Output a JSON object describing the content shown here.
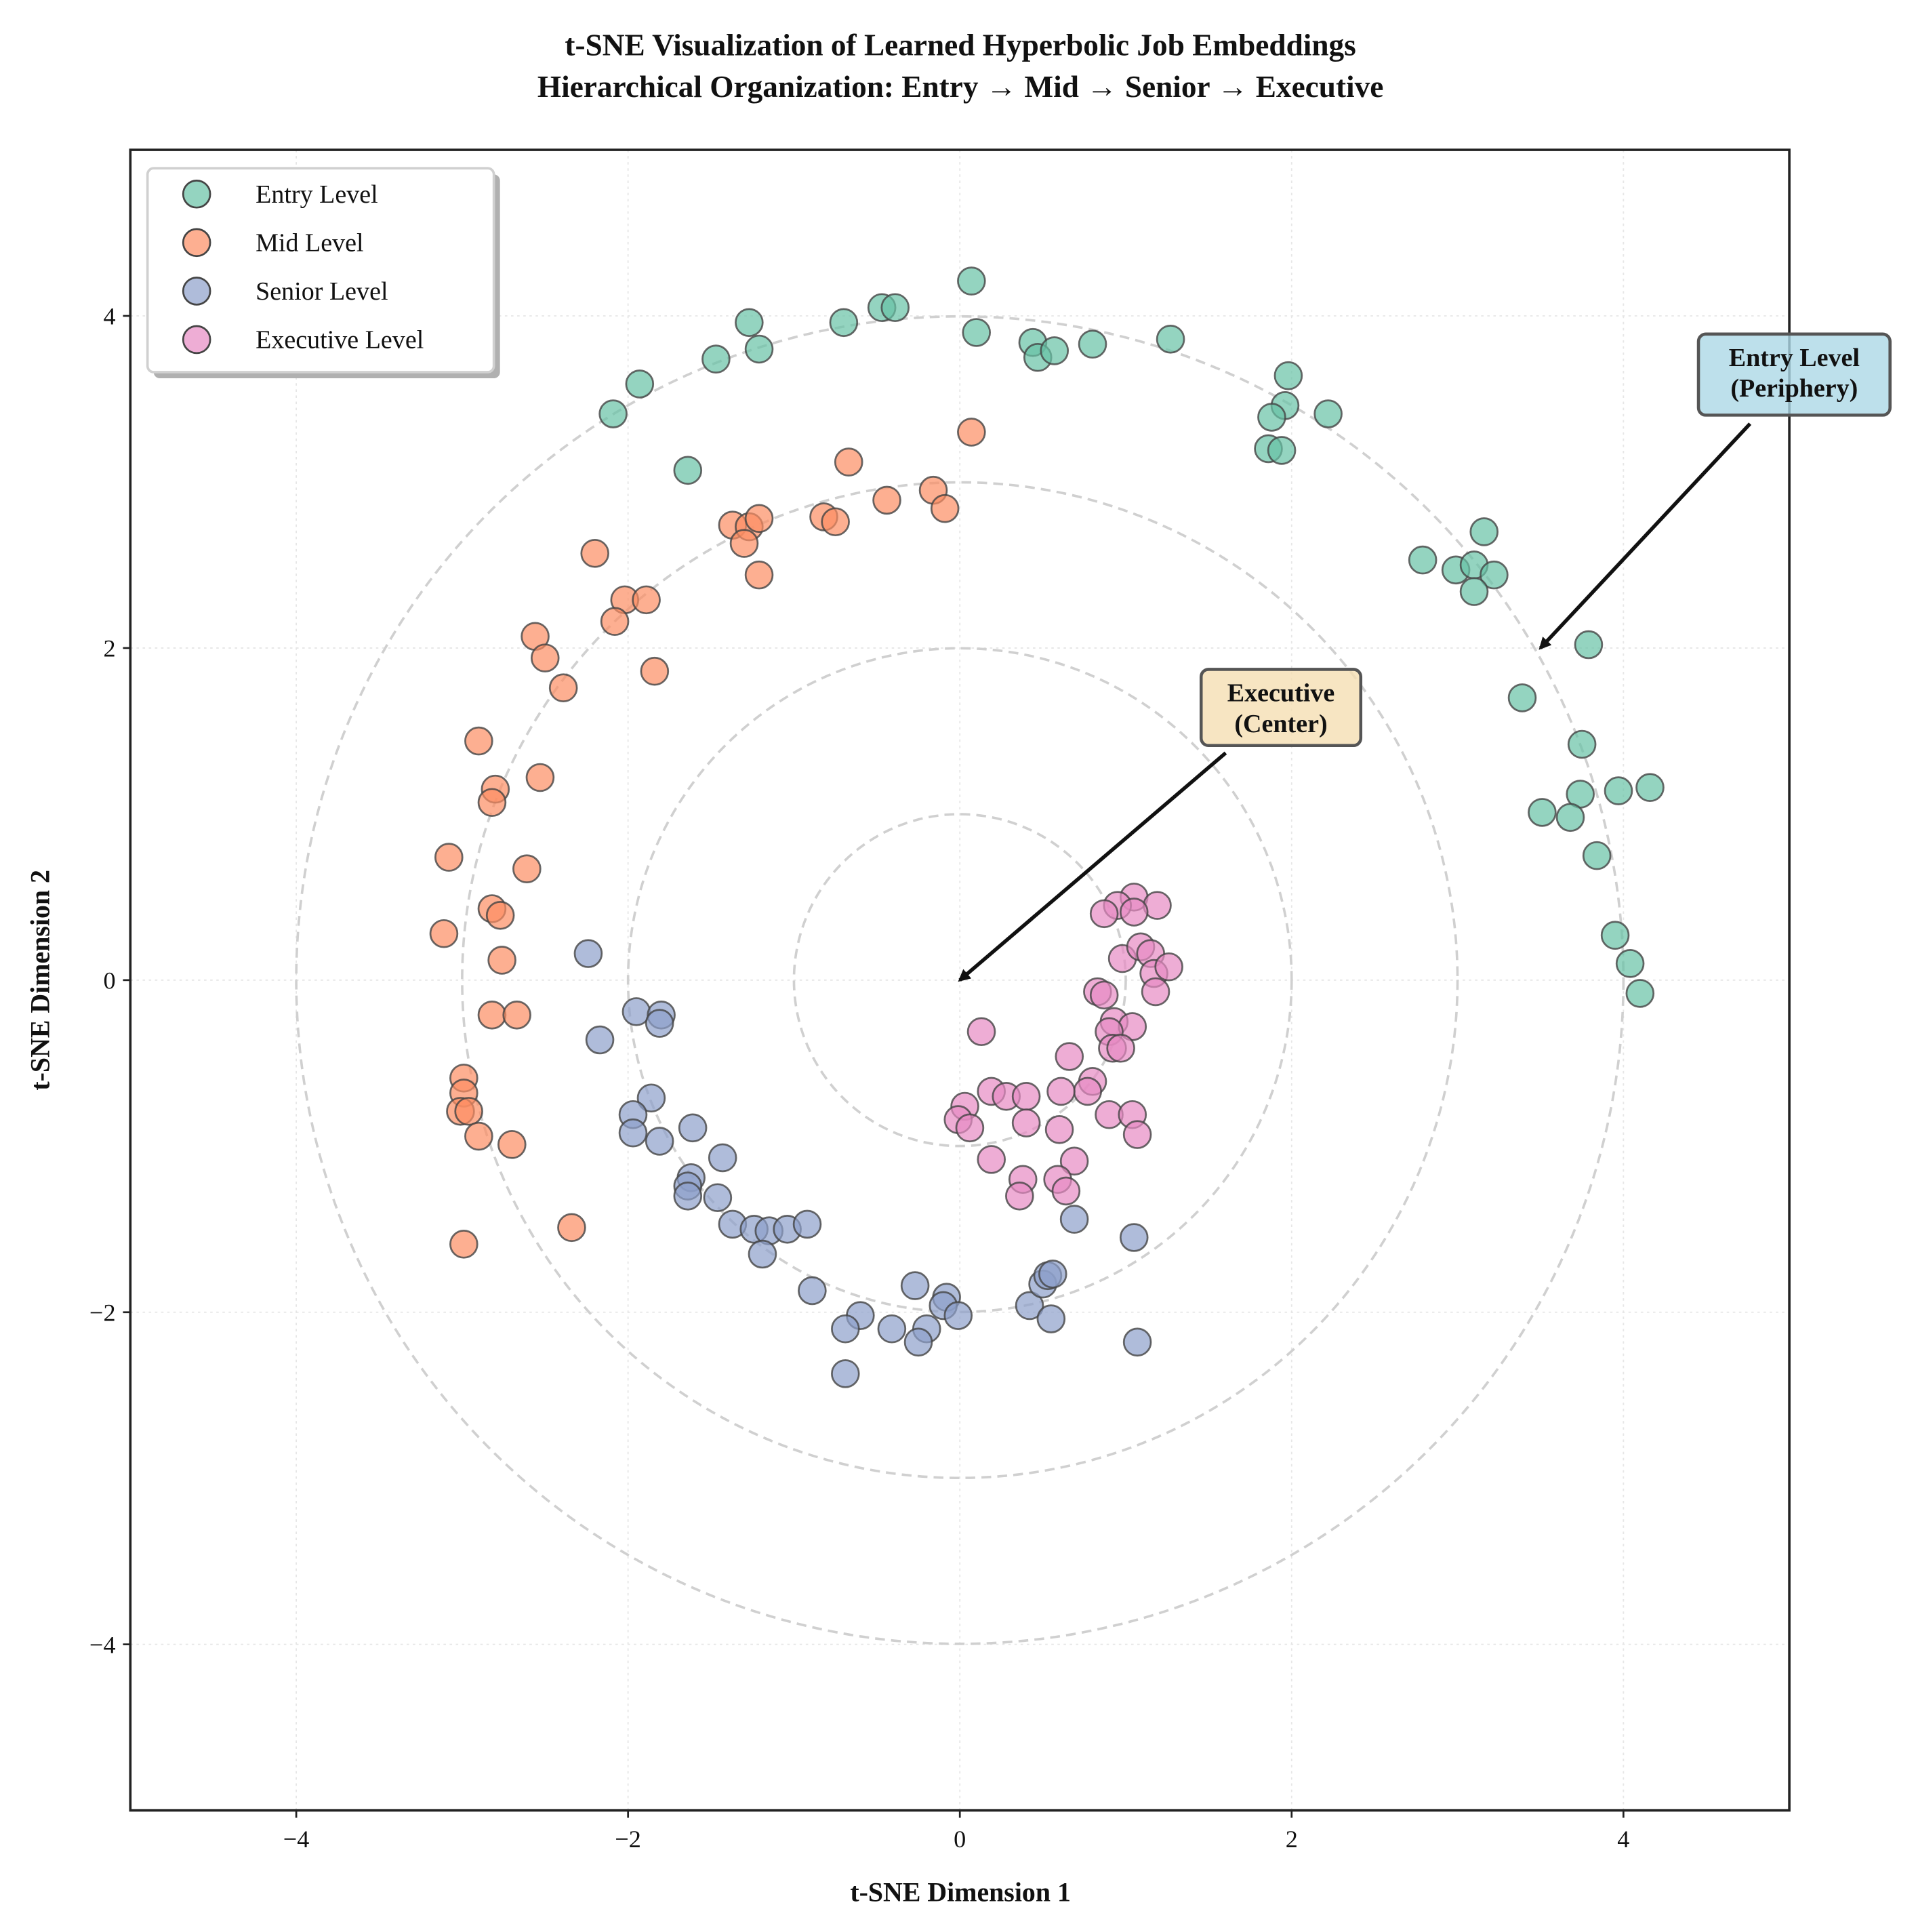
{
  "chart_data": {
    "type": "scatter",
    "title": "t-SNE Visualization of Learned Hyperbolic Job Embeddings",
    "subtitle": "Hierarchical Organization: Entry → Mid → Senior → Executive",
    "xlabel": "t-SNE Dimension 1",
    "ylabel": "t-SNE Dimension 2",
    "xlim": [
      -5,
      5
    ],
    "ylim": [
      -5,
      5
    ],
    "xticks": [
      -4,
      -2,
      0,
      2,
      4
    ],
    "yticks": [
      -4,
      -2,
      0,
      2,
      4
    ],
    "xtick_labels": [
      "−4",
      "−2",
      "0",
      "2",
      "4"
    ],
    "ytick_labels": [
      "−4",
      "−2",
      "0",
      "2",
      "4"
    ],
    "grid": true,
    "legend_placement": "top-left",
    "reference_circles": [
      1,
      2,
      3,
      4
    ],
    "series": [
      {
        "name": "Entry Level",
        "color": "#66c2a5",
        "points": [
          [
            0.07,
            4.21
          ],
          [
            0.1,
            3.9
          ],
          [
            -0.47,
            4.05
          ],
          [
            -0.39,
            4.05
          ],
          [
            -0.7,
            3.96
          ],
          [
            -1.27,
            3.96
          ],
          [
            -1.21,
            3.8
          ],
          [
            -1.47,
            3.74
          ],
          [
            -1.93,
            3.59
          ],
          [
            -2.09,
            3.41
          ],
          [
            -1.64,
            3.07
          ],
          [
            0.44,
            3.84
          ],
          [
            0.47,
            3.75
          ],
          [
            0.57,
            3.79
          ],
          [
            0.8,
            3.83
          ],
          [
            1.27,
            3.86
          ],
          [
            1.98,
            3.64
          ],
          [
            1.96,
            3.46
          ],
          [
            1.88,
            3.39
          ],
          [
            2.22,
            3.41
          ],
          [
            1.86,
            3.2
          ],
          [
            1.94,
            3.19
          ],
          [
            2.79,
            2.53
          ],
          [
            2.99,
            2.47
          ],
          [
            3.16,
            2.7
          ],
          [
            3.1,
            2.5
          ],
          [
            3.22,
            2.44
          ],
          [
            3.1,
            2.34
          ],
          [
            3.79,
            2.02
          ],
          [
            3.39,
            1.7
          ],
          [
            3.75,
            1.42
          ],
          [
            3.74,
            1.12
          ],
          [
            3.97,
            1.14
          ],
          [
            4.16,
            1.16
          ],
          [
            3.51,
            1.01
          ],
          [
            3.68,
            0.98
          ],
          [
            3.84,
            0.75
          ],
          [
            3.95,
            0.27
          ],
          [
            4.04,
            0.1
          ],
          [
            4.1,
            -0.08
          ]
        ]
      },
      {
        "name": "Mid Level",
        "color": "#fc8d62",
        "points": [
          [
            0.07,
            3.3
          ],
          [
            -0.67,
            3.12
          ],
          [
            -0.16,
            2.95
          ],
          [
            -0.09,
            2.84
          ],
          [
            -0.44,
            2.89
          ],
          [
            -0.82,
            2.79
          ],
          [
            -0.75,
            2.76
          ],
          [
            -1.37,
            2.74
          ],
          [
            -1.27,
            2.73
          ],
          [
            -1.21,
            2.78
          ],
          [
            -1.3,
            2.63
          ],
          [
            -1.21,
            2.44
          ],
          [
            -2.2,
            2.57
          ],
          [
            -2.02,
            2.29
          ],
          [
            -1.89,
            2.29
          ],
          [
            -2.08,
            2.16
          ],
          [
            -1.84,
            1.86
          ],
          [
            -2.56,
            2.07
          ],
          [
            -2.5,
            1.94
          ],
          [
            -2.39,
            1.76
          ],
          [
            -2.9,
            1.44
          ],
          [
            -2.8,
            1.15
          ],
          [
            -2.82,
            1.07
          ],
          [
            -2.53,
            1.22
          ],
          [
            -3.08,
            0.74
          ],
          [
            -2.61,
            0.67
          ],
          [
            -2.82,
            0.43
          ],
          [
            -2.77,
            0.39
          ],
          [
            -3.11,
            0.28
          ],
          [
            -2.76,
            0.12
          ],
          [
            -2.82,
            -0.21
          ],
          [
            -2.67,
            -0.21
          ],
          [
            -2.99,
            -0.59
          ],
          [
            -2.99,
            -0.68
          ],
          [
            -3.01,
            -0.79
          ],
          [
            -2.96,
            -0.79
          ],
          [
            -2.9,
            -0.94
          ],
          [
            -2.7,
            -0.99
          ],
          [
            -2.34,
            -1.49
          ],
          [
            -2.99,
            -1.59
          ]
        ]
      },
      {
        "name": "Senior Level",
        "color": "#8da0cb",
        "points": [
          [
            -2.24,
            0.16
          ],
          [
            -2.17,
            -0.36
          ],
          [
            -1.95,
            -0.19
          ],
          [
            -1.8,
            -0.21
          ],
          [
            -1.81,
            -0.26
          ],
          [
            -1.86,
            -0.71
          ],
          [
            -1.97,
            -0.81
          ],
          [
            -1.97,
            -0.92
          ],
          [
            -1.81,
            -0.97
          ],
          [
            -1.61,
            -0.89
          ],
          [
            -1.43,
            -1.07
          ],
          [
            -1.62,
            -1.19
          ],
          [
            -1.64,
            -1.24
          ],
          [
            -1.64,
            -1.3
          ],
          [
            -1.46,
            -1.31
          ],
          [
            -1.37,
            -1.47
          ],
          [
            -1.24,
            -1.5
          ],
          [
            -1.15,
            -1.51
          ],
          [
            -1.04,
            -1.5
          ],
          [
            -0.92,
            -1.47
          ],
          [
            -1.19,
            -1.65
          ],
          [
            -0.89,
            -1.87
          ],
          [
            -0.6,
            -2.02
          ],
          [
            -0.69,
            -2.1
          ],
          [
            -0.41,
            -2.1
          ],
          [
            -0.2,
            -2.1
          ],
          [
            -0.25,
            -2.18
          ],
          [
            -0.27,
            -1.84
          ],
          [
            -0.08,
            -1.91
          ],
          [
            -0.1,
            -1.96
          ],
          [
            -0.01,
            -2.02
          ],
          [
            -0.69,
            -2.37
          ],
          [
            0.42,
            -1.96
          ],
          [
            0.55,
            -2.04
          ],
          [
            0.5,
            -1.83
          ],
          [
            0.53,
            -1.78
          ],
          [
            0.56,
            -1.77
          ],
          [
            0.69,
            -1.44
          ],
          [
            1.05,
            -1.55
          ],
          [
            1.07,
            -2.18
          ]
        ]
      },
      {
        "name": "Executive Level",
        "color": "#e78ac3",
        "points": [
          [
            1.05,
            0.5
          ],
          [
            0.95,
            0.45
          ],
          [
            1.19,
            0.45
          ],
          [
            1.05,
            0.41
          ],
          [
            0.87,
            0.4
          ],
          [
            0.98,
            0.13
          ],
          [
            1.09,
            0.2
          ],
          [
            1.15,
            0.16
          ],
          [
            1.17,
            0.04
          ],
          [
            1.26,
            0.08
          ],
          [
            1.18,
            -0.07
          ],
          [
            0.83,
            -0.07
          ],
          [
            0.87,
            -0.09
          ],
          [
            0.93,
            -0.25
          ],
          [
            1.04,
            -0.28
          ],
          [
            0.9,
            -0.31
          ],
          [
            0.92,
            -0.41
          ],
          [
            0.97,
            -0.41
          ],
          [
            0.13,
            -0.31
          ],
          [
            0.66,
            -0.46
          ],
          [
            0.8,
            -0.61
          ],
          [
            0.77,
            -0.67
          ],
          [
            0.61,
            -0.67
          ],
          [
            0.19,
            -0.67
          ],
          [
            0.28,
            -0.7
          ],
          [
            0.4,
            -0.7
          ],
          [
            0.03,
            -0.76
          ],
          [
            -0.01,
            -0.84
          ],
          [
            0.06,
            -0.89
          ],
          [
            0.4,
            -0.86
          ],
          [
            0.9,
            -0.81
          ],
          [
            1.04,
            -0.81
          ],
          [
            1.07,
            -0.93
          ],
          [
            0.6,
            -0.9
          ],
          [
            0.19,
            -1.08
          ],
          [
            0.69,
            -1.09
          ],
          [
            0.38,
            -1.2
          ],
          [
            0.59,
            -1.2
          ],
          [
            0.64,
            -1.27
          ],
          [
            0.36,
            -1.3
          ]
        ]
      }
    ],
    "annotations": [
      {
        "lines": [
          "Executive",
          "(Center)"
        ],
        "target": [
          0,
          0
        ],
        "text_at": [
          1.5,
          1.6
        ],
        "box_color": "#f5deb3"
      },
      {
        "lines": [
          "Entry Level",
          "(Periphery)"
        ],
        "target": [
          3.5,
          2.0
        ],
        "text_at": [
          4.6,
          3.6
        ],
        "box_color": "#add8e6"
      }
    ]
  }
}
